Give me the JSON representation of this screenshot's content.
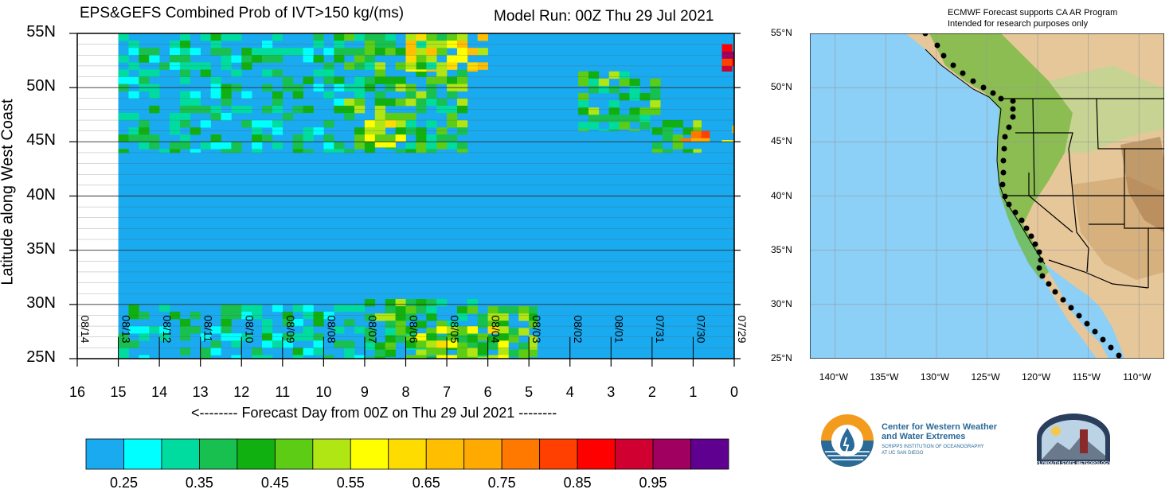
{
  "header": {
    "title": "EPS&GEFS Combined Prob of IVT>150 kg/(ms)",
    "model_run": "Model Run: 00Z Thu 29 Jul 2021"
  },
  "chart_data": {
    "type": "heatmap",
    "title": "EPS&GEFS Combined Prob of IVT>150 kg/(ms)",
    "xlabel": "<-------- Forecast Day from 00Z on Thu 29 Jul 2021 --------",
    "ylabel": "Latitude along West Coast",
    "x_ticks": [
      "16",
      "15",
      "14",
      "13",
      "12",
      "11",
      "10",
      "9",
      "8",
      "7",
      "6",
      "5",
      "4",
      "3",
      "2",
      "1",
      "0"
    ],
    "xlim": [
      16,
      0
    ],
    "y_ticks": [
      "25N",
      "30N",
      "35N",
      "40N",
      "45N",
      "50N",
      "55N"
    ],
    "ylim": [
      25,
      55
    ],
    "date_labels": [
      "08/14",
      "08/13",
      "08/12",
      "08/11",
      "08/10",
      "08/09",
      "08/08",
      "08/07",
      "08/06",
      "08/05",
      "08/04",
      "08/03",
      "08/02",
      "08/01",
      "07/31",
      "07/30",
      "07/29"
    ],
    "background_color": "#1aaaf0",
    "missing_color": "#ffffff",
    "regions": [
      {
        "x": [
          15,
          9.5
        ],
        "y": [
          44,
          55
        ],
        "level": 0.35,
        "note": "mixed 0.25-0.45"
      },
      {
        "x": [
          9.5,
          6.5
        ],
        "y": [
          44,
          55
        ],
        "level": 0.45
      },
      {
        "x": [
          8,
          6
        ],
        "y": [
          51.5,
          55
        ],
        "level": 0.6,
        "peak": 0.7
      },
      {
        "x": [
          9,
          8
        ],
        "y": [
          44.5,
          47
        ],
        "level": 0.55
      },
      {
        "x": [
          15,
          9
        ],
        "y": [
          25,
          30
        ],
        "level": 0.35
      },
      {
        "x": [
          9,
          4.8
        ],
        "y": [
          25,
          30.5
        ],
        "level": 0.45
      },
      {
        "x": [
          8,
          5.5
        ],
        "y": [
          25,
          28
        ],
        "level": 0.55
      },
      {
        "x": [
          3.8,
          1.8
        ],
        "y": [
          46,
          51.5
        ],
        "level": 0.45
      },
      {
        "x": [
          2,
          0.8
        ],
        "y": [
          44,
          47
        ],
        "level": 0.45
      },
      {
        "x": [
          1.3,
          0.6
        ],
        "y": [
          45,
          46
        ],
        "level": 0.8
      },
      {
        "x": [
          0.3,
          0
        ],
        "y": [
          51.5,
          54
        ],
        "level": 0.95
      },
      {
        "x": [
          0.3,
          0
        ],
        "y": [
          45,
          46.5
        ],
        "level": 0.6
      }
    ]
  },
  "colorbar": {
    "colors": [
      "#1aaaf0",
      "#00ffff",
      "#00dca0",
      "#18c050",
      "#10b010",
      "#5ccd14",
      "#b0e614",
      "#ffff00",
      "#ffdc00",
      "#ffbe00",
      "#ffaa00",
      "#ff7800",
      "#ff4000",
      "#ff0000",
      "#d00030",
      "#a00060",
      "#600090"
    ],
    "labels": [
      "0.25",
      "0.35",
      "0.45",
      "0.55",
      "0.65",
      "0.75",
      "0.85",
      "0.95"
    ]
  },
  "map": {
    "note_line1": "ECMWF Forecast supports CA AR Program",
    "note_line2": "Intended for research purposes only",
    "lat_labels": [
      "55°N",
      "50°N",
      "45°N",
      "40°N",
      "35°N",
      "30°N",
      "25°N"
    ],
    "lon_labels": [
      "140°W",
      "135°W",
      "130°W",
      "125°W",
      "120°W",
      "115°W",
      "110°W"
    ],
    "ocean_color": "#8ccff7"
  },
  "logos": {
    "cw3e_line1": "Center for Western Weather",
    "cw3e_line2": "and Water Extremes",
    "cw3e_sub1": "SCRIPPS INSTITUTION OF OCEANOGRAPHY",
    "cw3e_sub2": "AT UC SAN DIEGO",
    "psu": "PLYMOUTH STATE METEOROLOGY"
  }
}
